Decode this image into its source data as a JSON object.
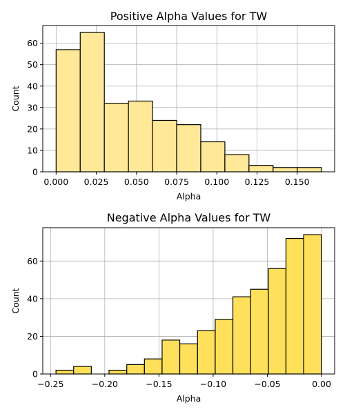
{
  "chart_data": [
    {
      "type": "bar",
      "title": "Positive Alpha Values for TW",
      "xlabel": "Alpha",
      "ylabel": "Count",
      "bin_edges": [
        0.0,
        0.015,
        0.03,
        0.045,
        0.06,
        0.075,
        0.09,
        0.105,
        0.12,
        0.135,
        0.15,
        0.165
      ],
      "values": [
        57,
        65,
        32,
        33,
        24,
        22,
        14,
        8,
        3,
        2,
        2
      ],
      "xlim": [
        -0.0083,
        0.1733
      ],
      "ylim": [
        0,
        68.25
      ],
      "xticks": [
        0.0,
        0.025,
        0.05,
        0.075,
        0.1,
        0.125,
        0.15
      ],
      "xtick_labels": [
        "0.000",
        "0.025",
        "0.050",
        "0.075",
        "0.100",
        "0.125",
        "0.150"
      ],
      "yticks": [
        0,
        10,
        20,
        30,
        40,
        50,
        60
      ],
      "ytick_labels": [
        "0",
        "10",
        "20",
        "30",
        "40",
        "50",
        "60"
      ],
      "grid": true,
      "bar_color": "#ffe897",
      "edge_color": "#000000"
    },
    {
      "type": "bar",
      "title": "Negative Alpha Values for TW",
      "xlabel": "Alpha",
      "ylabel": "Count",
      "bin_edges": [
        -0.245,
        -0.2287,
        -0.2124,
        -0.1961,
        -0.1797,
        -0.1634,
        -0.1471,
        -0.1308,
        -0.1144,
        -0.0981,
        -0.0818,
        -0.0655,
        -0.0491,
        -0.0328,
        -0.0165,
        -0.0002
      ],
      "values": [
        2,
        4,
        0,
        2,
        5,
        8,
        18,
        16,
        23,
        29,
        41,
        45,
        56,
        72,
        74
      ],
      "xlim": [
        -0.2572,
        0.0121
      ],
      "ylim": [
        0,
        77.7
      ],
      "xticks": [
        -0.25,
        -0.2,
        -0.15,
        -0.1,
        -0.05,
        0.0
      ],
      "xtick_labels": [
        "−0.25",
        "−0.20",
        "−0.15",
        "−0.10",
        "−0.05",
        "0.00"
      ],
      "yticks": [
        0,
        20,
        40,
        60
      ],
      "ytick_labels": [
        "0",
        "20",
        "40",
        "60"
      ],
      "grid": true,
      "bar_color": "#ffe05a",
      "edge_color": "#000000"
    }
  ]
}
